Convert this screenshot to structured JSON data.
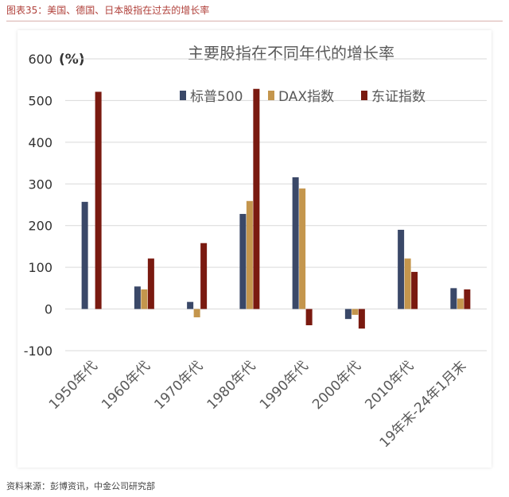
{
  "caption": "图表35：美国、德国、日本股指在过去的增长率",
  "source": "资料来源：彭博资讯，中金公司研究部",
  "chart_data": {
    "type": "bar",
    "title": "主要股指在不同年代的增长率",
    "unit": "(%)",
    "categories": [
      "1950年代",
      "1960年代",
      "1970年代",
      "1980年代",
      "1990年代",
      "2000年代",
      "2010年代",
      "19年末-24年1月末"
    ],
    "series": [
      {
        "name": "标普500",
        "color": "#3a4868",
        "values": [
          257,
          54,
          17,
          228,
          316,
          -24,
          190,
          50
        ]
      },
      {
        "name": "DAX指数",
        "color": "#c4964d",
        "values": [
          null,
          47,
          -20,
          259,
          289,
          -14,
          121,
          25
        ]
      },
      {
        "name": "东证指数",
        "color": "#7a1a10",
        "values": [
          521,
          121,
          158,
          528,
          -39,
          -47,
          89,
          47
        ]
      }
    ],
    "ylim": [
      -100,
      600
    ],
    "yticks": [
      600,
      500,
      400,
      300,
      200,
      100,
      0,
      -100
    ],
    "grid": true,
    "legend": "top"
  }
}
